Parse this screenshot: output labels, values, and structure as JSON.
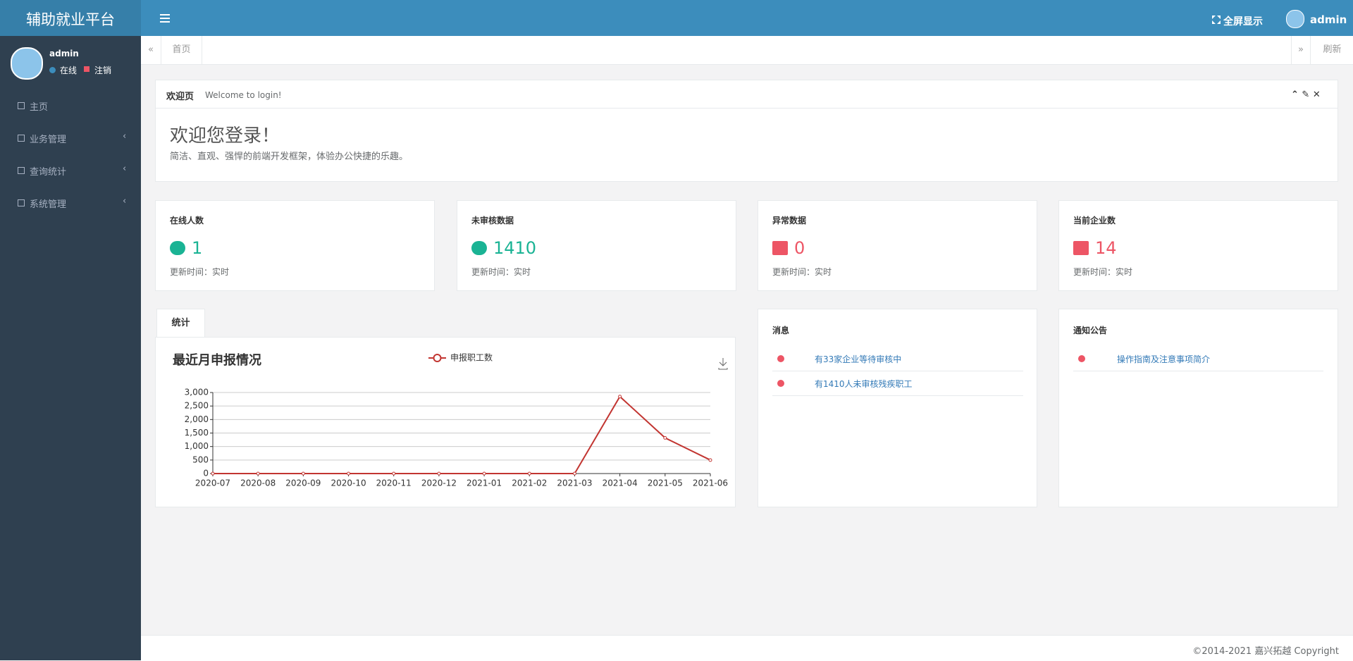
{
  "header": {
    "brand": "辅助就业平台",
    "fullscreen": "全屏显示",
    "user": "admin"
  },
  "sidebar": {
    "user": "admin",
    "status": "在线",
    "logout": "注销",
    "menu": [
      "主页",
      "业务管理",
      "查询统计",
      "系统管理"
    ]
  },
  "tabs": {
    "home": "首页",
    "refresh": "刷新"
  },
  "welcome": {
    "title": "欢迎页",
    "subtitle": "Welcome to login!",
    "heading": "欢迎您登录！",
    "text": "简洁、直观、强悍的前端开发框架，体验办公快捷的乐趣。"
  },
  "stats": [
    {
      "label": "在线人数",
      "value": 1,
      "note": "更新时间：实时"
    },
    {
      "label": "未审核数据",
      "value": 1410,
      "note": "更新时间：实时"
    },
    {
      "label": "异常数据",
      "value": 0,
      "note": "更新时间：实时"
    },
    {
      "label": "当前企业数",
      "value": 14,
      "note": "更新时间：实时"
    }
  ],
  "chart_panel": {
    "tab": "统计"
  },
  "chart_data": {
    "type": "line",
    "title": "最近月申报情况",
    "categories": [
      "2020-07",
      "2020-08",
      "2020-09",
      "2020-10",
      "2020-11",
      "2020-12",
      "2021-01",
      "2021-02",
      "2021-03",
      "2021-04",
      "2021-05",
      "2021-06"
    ],
    "series": [
      {
        "name": "申报职工数",
        "color": "#c23531",
        "values": [
          0,
          0,
          0,
          0,
          0,
          0,
          0,
          0,
          0,
          2850,
          1320,
          500
        ]
      }
    ],
    "ylim": [
      0,
      3000
    ],
    "yticks": [
      0,
      500,
      {
        "value": 1000,
        "label": "1,000"
      },
      {
        "value": 1500,
        "label": "1,500"
      },
      {
        "value": 2000,
        "label": "2,000"
      },
      {
        "value": 2500,
        "label": "2,500"
      },
      {
        "value": 3000,
        "label": "3,000"
      }
    ],
    "grid": true
  },
  "messages": {
    "title": "消息",
    "items": [
      "有33家企业等待审核中",
      "有1410人未审核残疾职工"
    ]
  },
  "notices": {
    "title": "通知公告",
    "items": [
      "操作指南及注意事项简介"
    ]
  },
  "footer": {
    "copyright": "©2014-2021 嘉兴拓越 Copyright"
  }
}
